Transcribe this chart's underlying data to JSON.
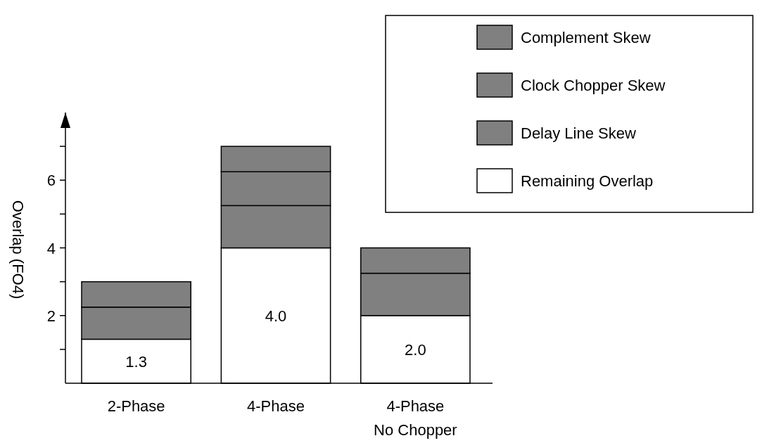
{
  "chart_data": {
    "type": "bar",
    "stacked": true,
    "ylabel": "Overlap (FO4)",
    "categories": [
      "2-Phase",
      "4-Phase",
      "4-Phase\nNo Chopper"
    ],
    "ylim": [
      0,
      8
    ],
    "yticks": [
      {
        "value": 1,
        "label": null
      },
      2,
      {
        "value": 3,
        "label": null
      },
      4,
      {
        "value": 5,
        "label": null
      },
      6,
      {
        "value": 7,
        "label": null
      }
    ],
    "legend": "top right",
    "grid": false,
    "series": [
      {
        "name": "Remaining Overlap",
        "color": "#ffffff",
        "values": [
          1.3,
          4.0,
          2.0
        ],
        "value_labels": [
          "1.3",
          "4.0",
          "2.0"
        ]
      },
      {
        "name": "Delay Line Skew",
        "color": "#808080",
        "values": [
          0.95,
          1.25,
          1.25
        ]
      },
      {
        "name": "Clock Chopper Skew",
        "color": "#808080",
        "values": [
          0,
          1.0,
          0
        ]
      },
      {
        "name": "Complement Skew",
        "color": "#808080",
        "values": [
          0.75,
          0.75,
          0.75
        ]
      }
    ]
  }
}
